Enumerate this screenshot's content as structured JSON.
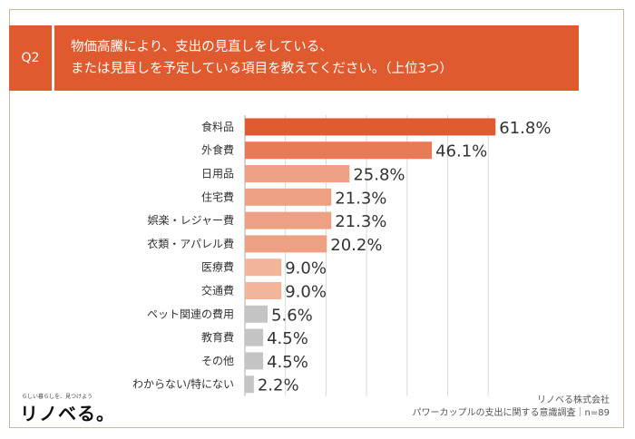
{
  "question": {
    "tag": "Q2",
    "line1": "物価高騰により、支出の見直しをしている、",
    "line2": "または見直しを予定している項目を教えてください。（上位3つ）"
  },
  "brand": {
    "tagline": "らしい暮らしを、見つけよう",
    "logo": "リノベる。"
  },
  "source": {
    "company": "リノベる株式会社",
    "survey": "パワーカップルの支出に関する意識調査｜n=89"
  },
  "colors": {
    "header": "#e05a30",
    "top": "#e05a30",
    "high": "#e87a56",
    "mid": "#eda182",
    "low": "#f3b59a",
    "rest": "#c4c4c4"
  },
  "chart_data": {
    "type": "bar",
    "orientation": "horizontal",
    "unit": "%",
    "xlim": [
      0,
      70
    ],
    "grid": true,
    "categories": [
      "食料品",
      "外食費",
      "日用品",
      "住宅費",
      "娯楽・レジャー費",
      "衣類・アパレル費",
      "医療費",
      "交通費",
      "ペット関連の費用",
      "教育費",
      "その他",
      "わからない/特にない"
    ],
    "values": [
      61.8,
      46.1,
      25.8,
      21.3,
      21.3,
      20.2,
      9.0,
      9.0,
      5.6,
      4.5,
      4.5,
      2.2
    ],
    "labels": [
      "61.8%",
      "46.1%",
      "25.8%",
      "21.3%",
      "21.3%",
      "20.2%",
      "9.0%",
      "9.0%",
      "5.6%",
      "4.5%",
      "4.5%",
      "2.2%"
    ],
    "color_keys": [
      "top",
      "high",
      "mid",
      "mid",
      "mid",
      "mid",
      "low",
      "low",
      "rest",
      "rest",
      "rest",
      "rest"
    ]
  }
}
